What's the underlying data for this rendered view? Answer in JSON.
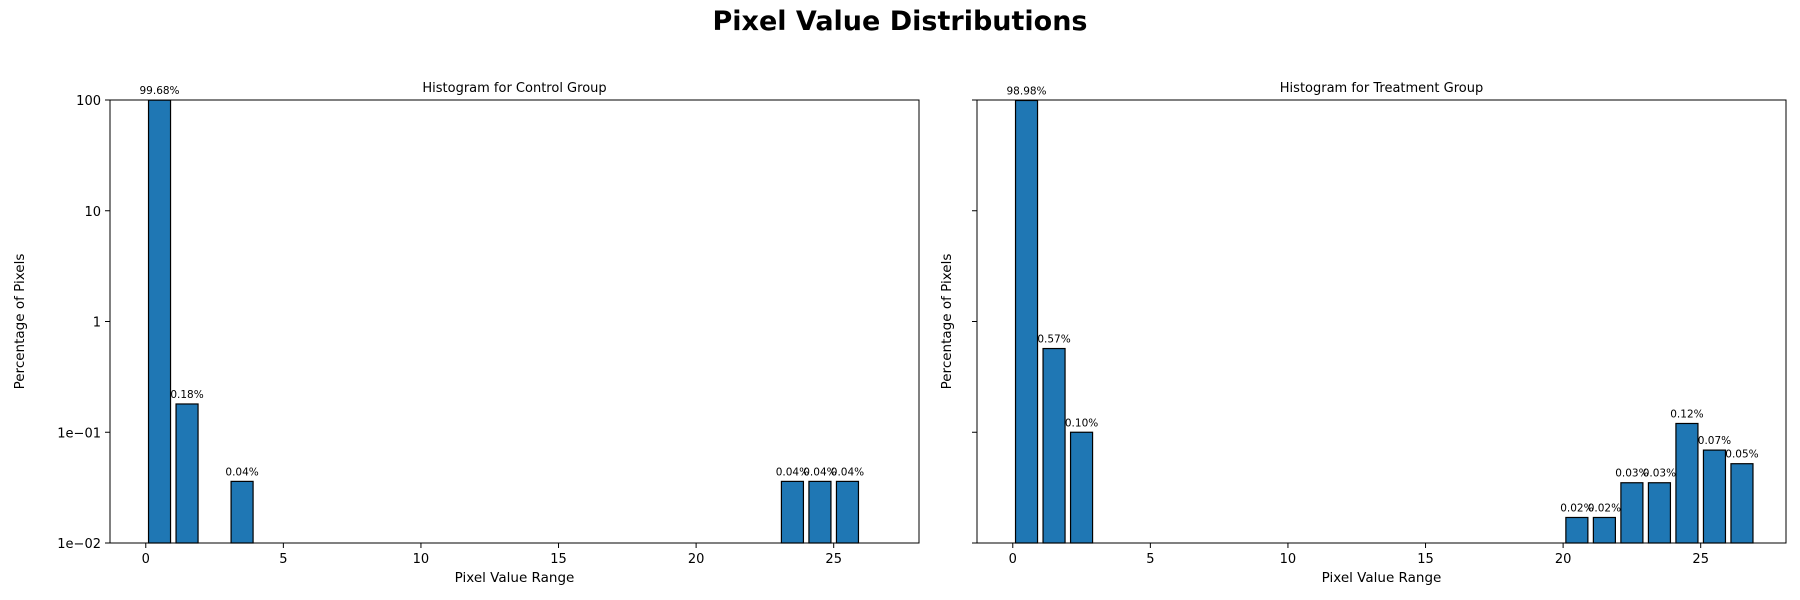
{
  "title": "Pixel Value Distributions",
  "colors": {
    "bar": "#1f77b4",
    "edge": "#000000",
    "axes": "#000000"
  },
  "chart_data": [
    {
      "type": "bar",
      "title": "Histogram for Control Group",
      "xlabel": "Pixel Value Range",
      "ylabel": "Percentage of Pixels",
      "yscale": "log",
      "xlim": [
        -1.3,
        28.1
      ],
      "ylim": [
        0.01,
        100
      ],
      "xticks": [
        0,
        5,
        10,
        15,
        20,
        25
      ],
      "yticks": [
        0.01,
        0.1,
        1,
        10,
        100
      ],
      "ytick_labels": [
        "1e−02",
        "1e−01",
        "1",
        "10",
        "100"
      ],
      "show_ytick_labels": true,
      "grid": false,
      "x": [
        0.5,
        1.5,
        3.5,
        23.5,
        24.5,
        25.5
      ],
      "values": [
        99.68,
        0.18,
        0.036,
        0.036,
        0.036,
        0.036
      ],
      "labels": [
        "99.68%",
        "0.18%",
        "0.04%",
        "0.04%",
        "0.04%",
        "0.04%"
      ]
    },
    {
      "type": "bar",
      "title": "Histogram for Treatment Group",
      "xlabel": "Pixel Value Range",
      "ylabel": "Percentage of Pixels",
      "yscale": "log",
      "xlim": [
        -1.3,
        28.1
      ],
      "ylim": [
        0.01,
        100
      ],
      "xticks": [
        0,
        5,
        10,
        15,
        20,
        25
      ],
      "yticks": [
        0.01,
        0.1,
        1,
        10,
        100
      ],
      "ytick_labels": [
        "1e−02",
        "1e−01",
        "1",
        "10",
        "100"
      ],
      "show_ytick_labels": false,
      "grid": false,
      "x": [
        0.5,
        1.5,
        2.5,
        20.5,
        21.5,
        22.5,
        23.5,
        24.5,
        25.5,
        26.5
      ],
      "values": [
        98.98,
        0.57,
        0.1,
        0.017,
        0.017,
        0.035,
        0.035,
        0.12,
        0.069,
        0.052
      ],
      "labels": [
        "98.98%",
        "0.57%",
        "0.10%",
        "0.02%",
        "0.02%",
        "0.03%",
        "0.03%",
        "0.12%",
        "0.07%",
        "0.05%"
      ]
    }
  ]
}
